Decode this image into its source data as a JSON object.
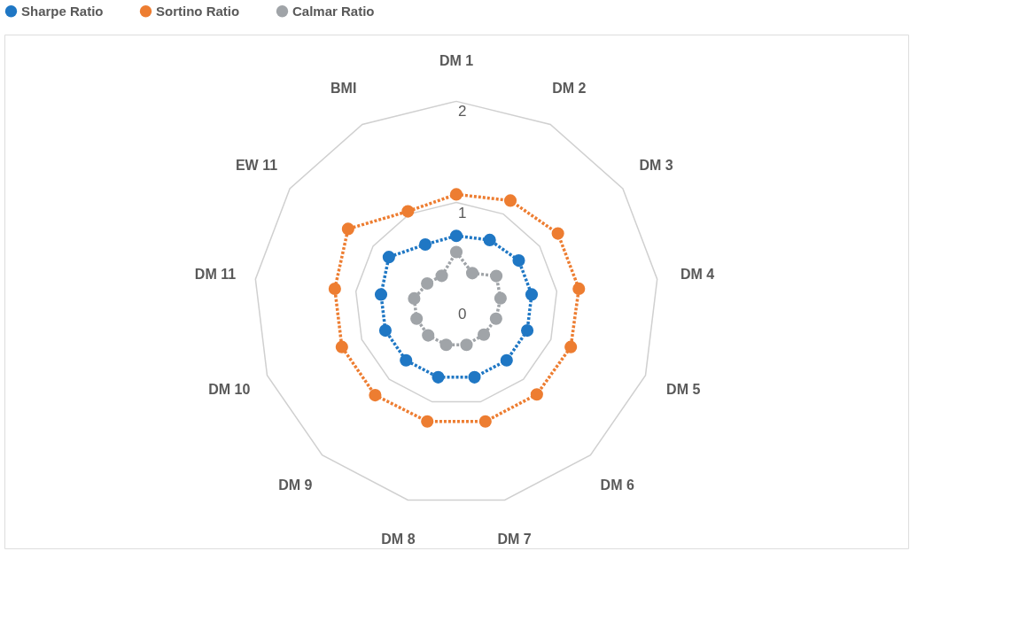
{
  "chart_data": {
    "type": "radar",
    "categories": [
      "DM 1",
      "DM 2",
      "DM 3",
      "DM 4",
      "DM 5",
      "DM 6",
      "DM 7",
      "DM 8",
      "DM 9",
      "DM 10",
      "DM 11",
      "EW 11",
      "BMI"
    ],
    "series": [
      {
        "name": "Sharpe Ratio",
        "color": "#1f77c4",
        "values": [
          0.67,
          0.71,
          0.75,
          0.75,
          0.75,
          0.75,
          0.75,
          0.75,
          0.75,
          0.75,
          0.75,
          0.81,
          0.66
        ]
      },
      {
        "name": "Sortino Ratio",
        "color": "#ed7d31",
        "values": [
          1.08,
          1.15,
          1.22,
          1.22,
          1.21,
          1.2,
          1.2,
          1.2,
          1.21,
          1.21,
          1.21,
          1.3,
          1.03
        ]
      },
      {
        "name": "Calmar Ratio",
        "color": "#a0a4a8",
        "values": [
          0.51,
          0.34,
          0.48,
          0.44,
          0.42,
          0.41,
          0.42,
          0.42,
          0.42,
          0.42,
          0.42,
          0.35,
          0.31
        ]
      }
    ],
    "ylim": [
      0,
      2
    ],
    "yticks": [
      0,
      1,
      2
    ],
    "grid": true,
    "legend": "top",
    "marker": "circle",
    "line_style": "dotted"
  }
}
